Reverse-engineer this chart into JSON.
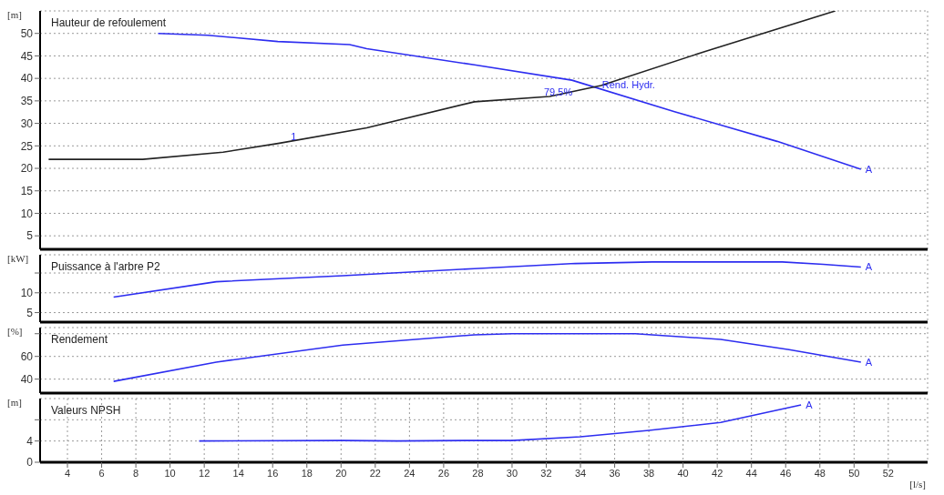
{
  "chart_data": [
    {
      "type": "line",
      "title": "Hauteur de refoulement",
      "ylabel": "[m]",
      "xlim": [
        2.4,
        54.3
      ],
      "xticks": [
        4,
        6,
        8,
        10,
        12,
        14,
        16,
        18,
        20,
        22,
        24,
        26,
        28,
        30,
        32,
        34,
        36,
        38,
        40,
        42,
        44,
        46,
        48,
        50,
        52
      ],
      "ylim": [
        2,
        55
      ],
      "yticks": [
        5,
        10,
        15,
        20,
        25,
        30,
        35,
        40,
        45,
        50
      ],
      "grid": true,
      "tick_labels": "y",
      "series": [
        {
          "color": "#2d2df0",
          "x": [
            9.3,
            12.2,
            16.3,
            20.5,
            21.5,
            27.8,
            33.5,
            39.5,
            45.5,
            50.4
          ],
          "values": [
            50,
            49.6,
            48.2,
            47.5,
            46.6,
            43,
            39.6,
            32.6,
            26,
            19.8
          ]
        },
        {
          "color": "#222222",
          "x": [
            2.9,
            8.4,
            13.1,
            16.4,
            21.5,
            27.8,
            32.2,
            35.2,
            41.3,
            48.9
          ],
          "values": [
            22,
            22,
            23.6,
            25.6,
            29,
            34.8,
            36,
            38.4,
            46,
            55
          ]
        }
      ],
      "annotations": [
        {
          "text": "1",
          "x": 16.8,
          "y": 27
        },
        {
          "text": "Rend. Hydr.",
          "x": 35,
          "y": 38.5
        },
        {
          "text": "79,5%",
          "x": 31.6,
          "y": 37
        },
        {
          "text": "A",
          "x": 50.4,
          "y": 19.8
        }
      ]
    },
    {
      "type": "line",
      "title": "Puissance à l'arbre P2",
      "ylabel": "[kW]",
      "xlim": [
        2.4,
        54.3
      ],
      "xticks": [
        4,
        6,
        8,
        10,
        12,
        14,
        16,
        18,
        20,
        22,
        24,
        26,
        28,
        30,
        32,
        34,
        36,
        38,
        40,
        42,
        44,
        46,
        48,
        50,
        52
      ],
      "ylim": [
        2.6,
        19.6
      ],
      "yticks": [
        5,
        10,
        {
          "value": 15,
          "label": null
        }
      ],
      "grid": true,
      "tick_labels": "y",
      "series": [
        {
          "color": "#2d2df0",
          "x": [
            6.7,
            12.7,
            20.1,
            27.8,
            33.7,
            38.2,
            45.8,
            48.2,
            50.4
          ],
          "values": [
            8.9,
            12.8,
            14.3,
            16.1,
            17.4,
            17.8,
            17.8,
            17.2,
            16.5
          ]
        }
      ],
      "annotations": [
        {
          "text": "A",
          "x": 50.4,
          "y": 16.5
        }
      ]
    },
    {
      "type": "line",
      "title": "Rendement",
      "ylabel": "[%]",
      "xlim": [
        2.4,
        54.3
      ],
      "xticks": [
        4,
        6,
        8,
        10,
        12,
        14,
        16,
        18,
        20,
        22,
        24,
        26,
        28,
        30,
        32,
        34,
        36,
        38,
        40,
        42,
        44,
        46,
        48,
        50,
        52
      ],
      "ylim": [
        27.7,
        85.4
      ],
      "yticks": [
        40,
        60,
        {
          "value": 80,
          "label": null
        }
      ],
      "grid": true,
      "tick_labels": "y",
      "series": [
        {
          "color": "#2d2df0",
          "x": [
            6.7,
            12.7,
            20.1,
            27.8,
            30,
            37.2,
            42.2,
            46.2,
            50.4
          ],
          "values": [
            38,
            55,
            70,
            79,
            80,
            80,
            75,
            66,
            55
          ]
        }
      ],
      "annotations": [
        {
          "text": "A",
          "x": 50.4,
          "y": 55
        }
      ]
    },
    {
      "type": "line",
      "title": "Valeurs NPSH",
      "ylabel": "[m]",
      "xlabel": "[l/s]",
      "xlim": [
        2.4,
        54.3
      ],
      "xticks": [
        4,
        6,
        8,
        10,
        12,
        14,
        16,
        18,
        20,
        22,
        24,
        26,
        28,
        30,
        32,
        34,
        36,
        38,
        40,
        42,
        44,
        46,
        48,
        50,
        52
      ],
      "ylim": [
        0,
        12
      ],
      "yticks": [
        0,
        4,
        {
          "value": 8,
          "label": null
        }
      ],
      "grid": true,
      "series": [
        {
          "color": "#2d2df0",
          "x": [
            11.7,
            20.1,
            23.3,
            27.8,
            30,
            34,
            38,
            42.2,
            46.9
          ],
          "values": [
            4,
            4.1,
            4,
            4.1,
            4.1,
            4.8,
            6,
            7.5,
            10.8
          ]
        }
      ],
      "annotations": [
        {
          "text": "A",
          "x": 46.9,
          "y": 10.8
        }
      ]
    }
  ]
}
